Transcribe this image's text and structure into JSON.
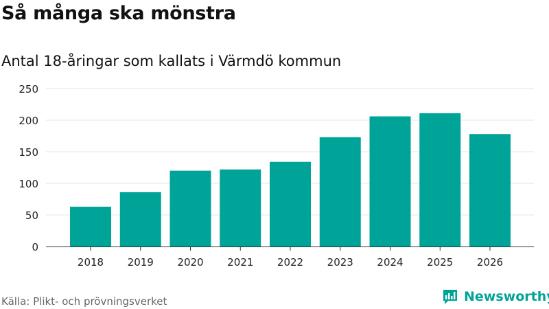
{
  "title": "Så många ska mönstra",
  "subtitle": "Antal 18-åringar som kallats i Värmdö kommun",
  "source": "Källa: Plikt- och prövningsverket",
  "brand": {
    "name": "Newsworthy",
    "icon": "newsworthy-logo-icon",
    "color": "#00a398"
  },
  "chart_data": {
    "type": "bar",
    "categories": [
      "2018",
      "2019",
      "2020",
      "2021",
      "2022",
      "2023",
      "2024",
      "2025",
      "2026"
    ],
    "values": [
      63,
      86,
      120,
      122,
      134,
      173,
      206,
      211,
      178
    ],
    "title": "",
    "xlabel": "",
    "ylabel": "",
    "ylim": [
      0,
      250
    ],
    "yticks": [
      0,
      50,
      100,
      150,
      200,
      250
    ],
    "grid": true,
    "bar_color": "#00a398",
    "grid_color": "#e5e5e5",
    "axis_color": "#333333"
  }
}
